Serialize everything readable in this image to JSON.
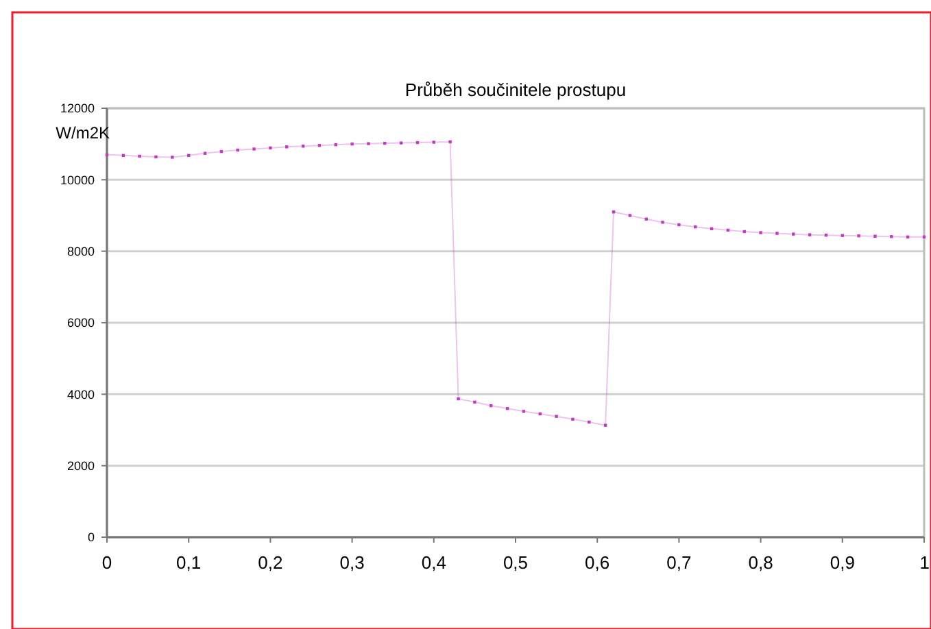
{
  "chart_data": {
    "type": "line",
    "title": "Průběh součinitele prostupu",
    "ylabel": "W/m2K",
    "series": [
      {
        "color": "#c03cc0",
        "x": [
          0,
          0.02,
          0.04,
          0.06,
          0.08,
          0.1,
          0.12,
          0.14,
          0.16,
          0.18,
          0.2,
          0.22,
          0.24,
          0.26,
          0.28,
          0.3,
          0.32,
          0.34,
          0.36,
          0.38,
          0.4,
          0.42,
          0.43,
          0.45,
          0.47,
          0.49,
          0.51,
          0.53,
          0.55,
          0.57,
          0.59,
          0.61,
          0.62,
          0.64,
          0.66,
          0.68,
          0.7,
          0.72,
          0.74,
          0.76,
          0.78,
          0.8,
          0.82,
          0.84,
          0.86,
          0.88,
          0.9,
          0.92,
          0.94,
          0.96,
          0.98,
          1
        ],
        "values": [
          10700,
          10680,
          10660,
          10640,
          10630,
          10680,
          10740,
          10790,
          10830,
          10860,
          10890,
          10920,
          10940,
          10960,
          10980,
          11000,
          11010,
          11020,
          11030,
          11040,
          11050,
          11060,
          3870,
          3780,
          3680,
          3600,
          3520,
          3450,
          3380,
          3300,
          3220,
          3130,
          9100,
          9000,
          8900,
          8810,
          8740,
          8680,
          8630,
          8590,
          8550,
          8520,
          8500,
          8480,
          8460,
          8450,
          8440,
          8430,
          8420,
          8410,
          8400,
          8400
        ]
      }
    ],
    "xlim": [
      0,
      1
    ],
    "xticks": [
      0,
      {
        "value": 0.1,
        "label": "0,1"
      },
      {
        "value": 0.2,
        "label": "0,2"
      },
      {
        "value": 0.3,
        "label": "0,3"
      },
      {
        "value": 0.4,
        "label": "0,4"
      },
      {
        "value": 0.5,
        "label": "0,5"
      },
      {
        "value": 0.6,
        "label": "0,6"
      },
      {
        "value": 0.7,
        "label": "0,7"
      },
      {
        "value": 0.8,
        "label": "0,8"
      },
      {
        "value": 0.9,
        "label": "0,9"
      },
      1
    ],
    "ylim": [
      0,
      12000
    ],
    "yticks": [
      0,
      2000,
      4000,
      6000,
      8000,
      10000,
      12000
    ],
    "grid": "y",
    "marker": "square",
    "line_style": "solid"
  }
}
